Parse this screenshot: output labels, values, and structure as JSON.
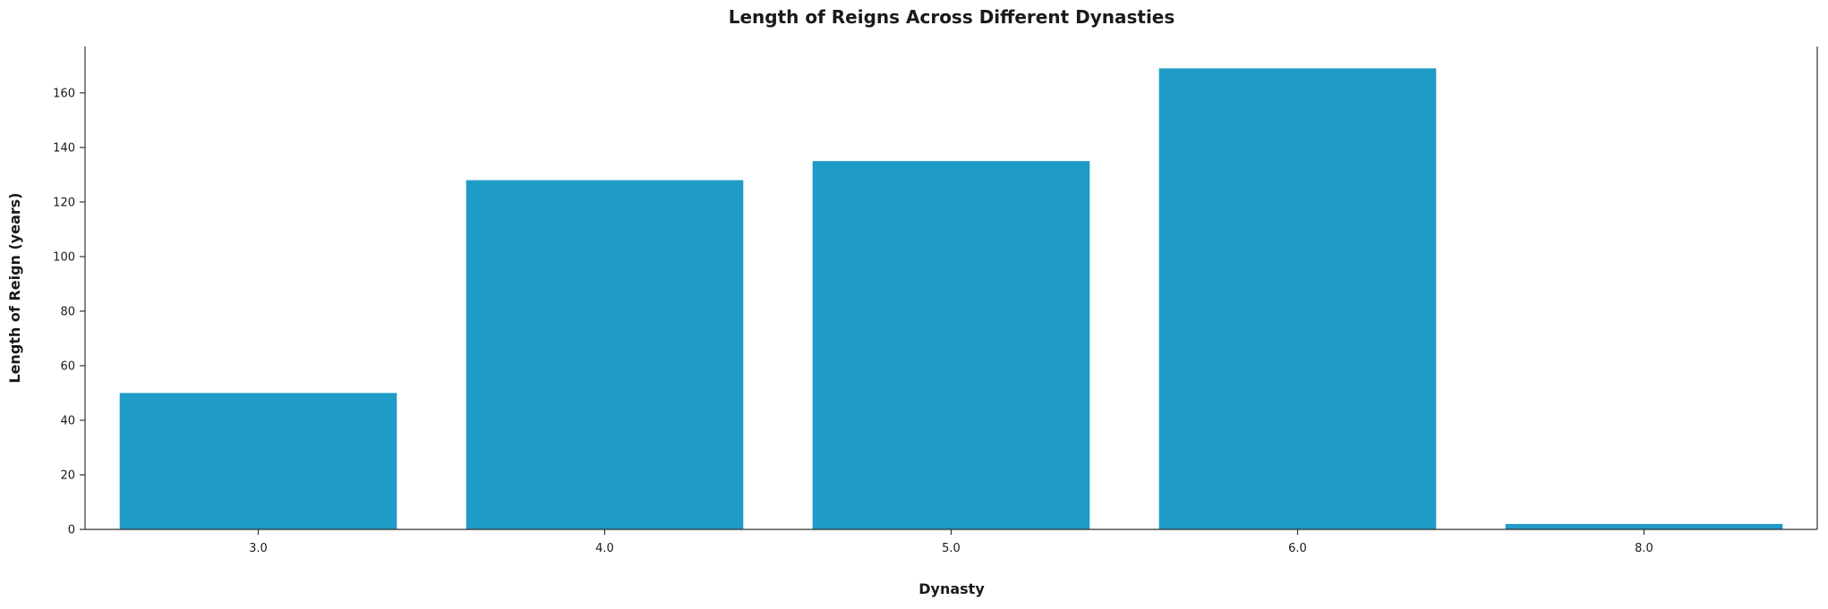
{
  "chart_data": {
    "type": "bar",
    "title": "Length of Reigns Across Different Dynasties",
    "xlabel": "Dynasty",
    "ylabel": "Length of Reign (years)",
    "categories": [
      "3.0",
      "4.0",
      "5.0",
      "6.0",
      "8.0"
    ],
    "values": [
      50,
      128,
      135,
      169,
      2
    ],
    "ylim": [
      0,
      177
    ],
    "yticks": [
      0,
      20,
      40,
      60,
      80,
      100,
      120,
      140,
      160
    ],
    "grid": false,
    "bar_color": "#1f9bc7",
    "axis_color": "#333333",
    "text_color": "#1a1a1a"
  }
}
